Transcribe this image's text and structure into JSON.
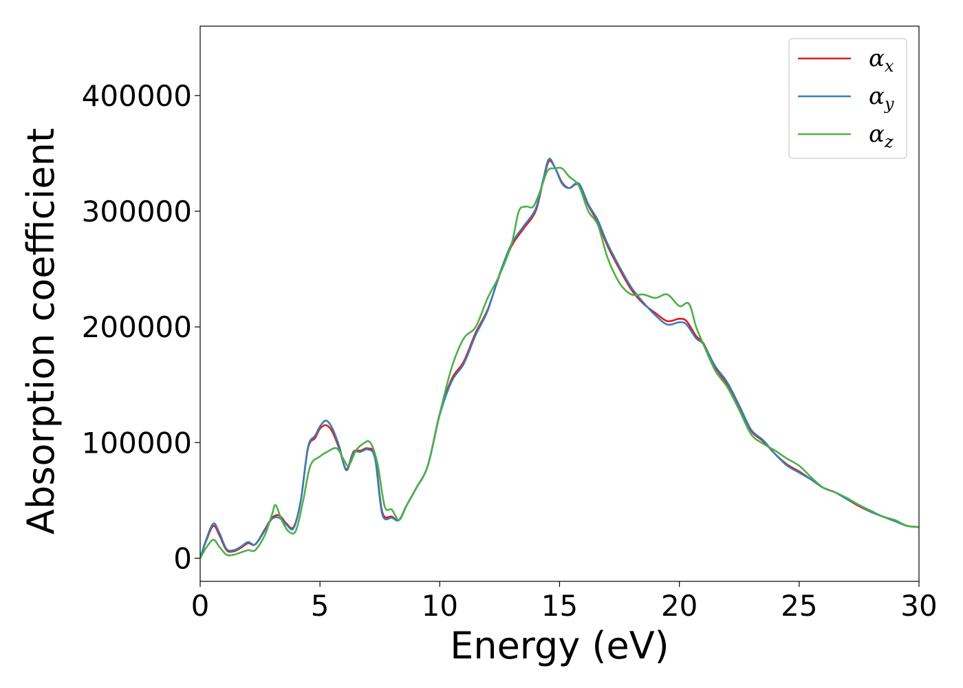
{
  "chart_data": {
    "type": "line",
    "title": "",
    "xlabel": "Energy (eV)",
    "ylabel": "Absorption coefficient",
    "xlim": [
      0,
      30
    ],
    "ylim": [
      -20000,
      460000
    ],
    "x_ticks": [
      0,
      5,
      10,
      15,
      20,
      25,
      30
    ],
    "y_ticks": [
      0,
      100000,
      200000,
      300000,
      400000
    ],
    "grid": false,
    "legend_position": "top-right",
    "series": [
      {
        "name": "αx",
        "legend_base": "α",
        "legend_sub": "x",
        "color": "#e41a1c",
        "x": [
          0,
          0.25,
          0.55,
          0.8,
          1.1,
          1.4,
          1.7,
          2.0,
          2.3,
          2.7,
          3.0,
          3.3,
          3.6,
          3.9,
          4.2,
          4.5,
          4.8,
          5.0,
          5.25,
          5.5,
          5.8,
          6.1,
          6.4,
          6.7,
          7.0,
          7.3,
          7.6,
          8.0,
          8.3,
          8.6,
          9.0,
          9.5,
          10.0,
          10.5,
          11.0,
          11.5,
          12.0,
          12.5,
          13.0,
          13.5,
          14.0,
          14.3,
          14.55,
          14.8,
          15.1,
          15.4,
          15.8,
          16.2,
          16.6,
          17.0,
          17.5,
          18.0,
          18.5,
          19.0,
          19.5,
          20.0,
          20.3,
          20.7,
          21.0,
          21.5,
          22.0,
          22.5,
          23.0,
          23.5,
          24.0,
          24.5,
          25.0,
          25.5,
          26.0,
          26.5,
          27.0,
          27.5,
          28.0,
          28.5,
          29.0,
          29.5,
          30.0
        ],
        "y": [
          0,
          15000,
          28000,
          20000,
          7000,
          6000,
          9000,
          13000,
          12000,
          25000,
          35000,
          37000,
          30000,
          27000,
          50000,
          95000,
          104000,
          112000,
          115000,
          110000,
          95000,
          77000,
          92000,
          93000,
          95000,
          88000,
          40000,
          36000,
          33000,
          45000,
          60000,
          80000,
          125000,
          155000,
          170000,
          195000,
          215000,
          245000,
          270000,
          285000,
          300000,
          325000,
          343000,
          338000,
          325000,
          320000,
          323000,
          305000,
          290000,
          270000,
          250000,
          232000,
          220000,
          212000,
          205000,
          207000,
          205000,
          192000,
          186000,
          165000,
          150000,
          130000,
          110000,
          101000,
          90000,
          81000,
          75000,
          68000,
          61000,
          57000,
          51000,
          45000,
          40000,
          36000,
          32000,
          28000,
          27000
        ]
      },
      {
        "name": "αy",
        "legend_base": "α",
        "legend_sub": "y",
        "color": "#377eb8",
        "x": [
          0,
          0.25,
          0.55,
          0.8,
          1.1,
          1.4,
          1.7,
          2.0,
          2.3,
          2.7,
          3.0,
          3.3,
          3.6,
          3.9,
          4.2,
          4.5,
          4.8,
          5.0,
          5.25,
          5.5,
          5.8,
          6.1,
          6.4,
          6.7,
          7.0,
          7.3,
          7.6,
          8.0,
          8.3,
          8.6,
          9.0,
          9.5,
          10.0,
          10.5,
          11.0,
          11.5,
          12.0,
          12.5,
          13.0,
          13.5,
          14.0,
          14.3,
          14.55,
          14.8,
          15.1,
          15.4,
          15.8,
          16.2,
          16.6,
          17.0,
          17.5,
          18.0,
          18.5,
          19.0,
          19.5,
          20.0,
          20.3,
          20.7,
          21.0,
          21.5,
          22.0,
          22.5,
          23.0,
          23.5,
          24.0,
          24.5,
          25.0,
          25.5,
          26.0,
          26.5,
          27.0,
          27.5,
          28.0,
          28.5,
          29.0,
          29.5,
          30.0
        ],
        "y": [
          0,
          16000,
          30000,
          22000,
          8000,
          7000,
          10000,
          14000,
          12000,
          24000,
          34000,
          35000,
          29000,
          26000,
          50000,
          96000,
          106000,
          114000,
          119000,
          113000,
          97000,
          76000,
          91000,
          92000,
          94000,
          86000,
          38000,
          35000,
          33000,
          45000,
          60000,
          80000,
          124000,
          153000,
          168000,
          193000,
          214000,
          246000,
          272000,
          287000,
          302000,
          326000,
          345000,
          338000,
          324000,
          320000,
          324000,
          306000,
          292000,
          272000,
          252000,
          234000,
          221000,
          210000,
          202000,
          204000,
          202000,
          190000,
          185000,
          166000,
          152000,
          132000,
          111000,
          102000,
          90000,
          80000,
          74000,
          68000,
          61000,
          57000,
          51000,
          46000,
          40000,
          36000,
          32000,
          28000,
          27000
        ]
      },
      {
        "name": "αz",
        "legend_base": "α",
        "legend_sub": "z",
        "color": "#4daf4a",
        "x": [
          0,
          0.25,
          0.55,
          0.8,
          1.1,
          1.4,
          1.7,
          2.0,
          2.3,
          2.7,
          3.0,
          3.15,
          3.4,
          3.7,
          4.0,
          4.3,
          4.6,
          5.0,
          5.3,
          5.7,
          6.0,
          6.2,
          6.5,
          6.8,
          7.1,
          7.4,
          7.7,
          8.0,
          8.3,
          8.6,
          9.0,
          9.5,
          10.0,
          10.5,
          11.0,
          11.5,
          12.0,
          12.5,
          13.0,
          13.3,
          13.6,
          13.9,
          14.2,
          14.5,
          14.8,
          15.1,
          15.4,
          15.8,
          16.2,
          16.6,
          17.0,
          17.5,
          18.0,
          18.5,
          19.0,
          19.5,
          20.0,
          20.4,
          20.7,
          21.0,
          21.5,
          22.0,
          22.5,
          23.0,
          23.5,
          24.0,
          24.5,
          25.0,
          25.5,
          26.0,
          26.5,
          27.0,
          27.5,
          28.0,
          28.5,
          29.0,
          29.5,
          30.0
        ],
        "y": [
          0,
          9000,
          16000,
          10000,
          3000,
          3000,
          5000,
          7000,
          7000,
          20000,
          38000,
          46000,
          33000,
          23000,
          24000,
          50000,
          80000,
          88000,
          92000,
          95000,
          85000,
          80000,
          93000,
          99000,
          100000,
          82000,
          45000,
          42000,
          33000,
          45000,
          60000,
          80000,
          125000,
          165000,
          190000,
          200000,
          225000,
          245000,
          272000,
          300000,
          304000,
          304000,
          318000,
          335000,
          337000,
          337000,
          330000,
          322000,
          300000,
          288000,
          260000,
          238000,
          228000,
          228000,
          225000,
          228000,
          218000,
          220000,
          200000,
          185000,
          162000,
          148000,
          128000,
          107000,
          99000,
          93000,
          86000,
          80000,
          70000,
          61000,
          57000,
          52000,
          46000,
          41000,
          36000,
          33000,
          28000,
          27000
        ]
      }
    ]
  }
}
